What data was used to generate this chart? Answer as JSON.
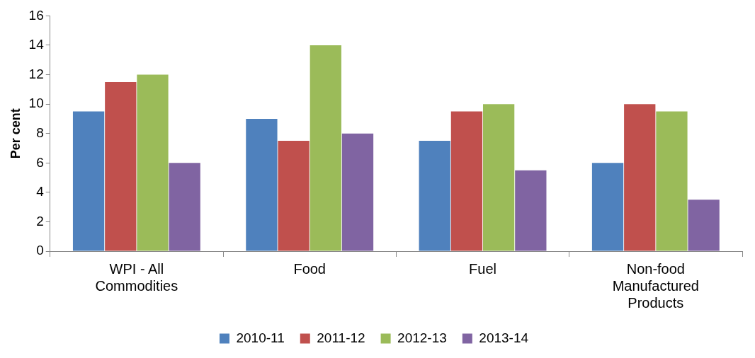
{
  "chart_data": {
    "type": "bar",
    "ylabel": "Per cent",
    "categories": [
      "WPI - All Commodities",
      "Food",
      "Fuel",
      "Non-food Manufactured Products"
    ],
    "series": [
      {
        "name": "2010-11",
        "color": "#4f81bd",
        "values": [
          9.5,
          9,
          7.5,
          6
        ]
      },
      {
        "name": "2011-12",
        "color": "#c0504d",
        "values": [
          11.5,
          7.5,
          9.5,
          10
        ]
      },
      {
        "name": "2012-13",
        "color": "#9bbb59",
        "values": [
          12,
          14,
          10,
          9.5
        ]
      },
      {
        "name": "2013-14",
        "color": "#8064a2",
        "values": [
          6,
          8,
          5.5,
          3.5
        ]
      }
    ],
    "ylim": [
      0,
      16
    ],
    "yticks": [
      0,
      2,
      4,
      6,
      8,
      10,
      12,
      14,
      16
    ],
    "grid": false,
    "legend": "bottom"
  }
}
